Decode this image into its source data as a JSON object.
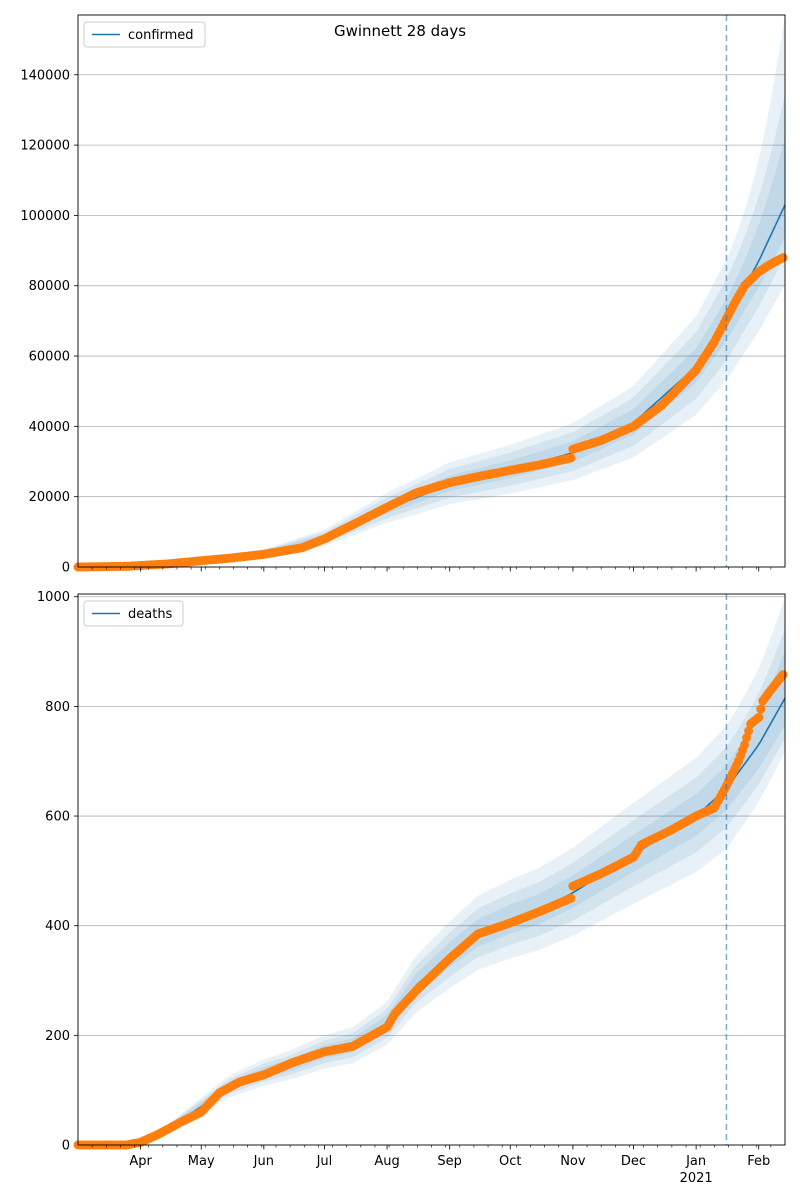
{
  "title": "Gwinnett 28 days",
  "colors": {
    "line": "#1f77b4",
    "observed": "#ff7f0e",
    "band": "#1f77b4",
    "grid": "#b0b0b0",
    "vline": "#1f77b4"
  },
  "chart_data": [
    {
      "type": "line",
      "legend": "top-left",
      "series_name": "confirmed",
      "ylim": [
        0,
        157000
      ],
      "yticks": [
        0,
        20000,
        40000,
        60000,
        80000,
        100000,
        120000,
        140000
      ],
      "ytick_labels": [
        "0",
        "20000",
        "40000",
        "60000",
        "80000",
        "100000",
        "120000",
        "140000"
      ],
      "grid": "y",
      "forecast_start": "2021-01-16",
      "model": [
        {
          "date": "2020-03-01",
          "y": 0
        },
        {
          "date": "2020-04-01",
          "y": 500
        },
        {
          "date": "2020-05-01",
          "y": 1800
        },
        {
          "date": "2020-06-01",
          "y": 3600
        },
        {
          "date": "2020-07-01",
          "y": 8000
        },
        {
          "date": "2020-08-01",
          "y": 16500
        },
        {
          "date": "2020-09-01",
          "y": 23500
        },
        {
          "date": "2020-10-01",
          "y": 27500
        },
        {
          "date": "2020-11-01",
          "y": 32500
        },
        {
          "date": "2020-12-01",
          "y": 41000
        },
        {
          "date": "2021-01-01",
          "y": 57000
        },
        {
          "date": "2021-01-16",
          "y": 70000
        },
        {
          "date": "2021-02-01",
          "y": 87000
        },
        {
          "date": "2021-02-14",
          "y": 103000
        }
      ],
      "band_fraction": [
        0.08,
        0.16,
        0.24
      ],
      "forecast_upper": [
        0.18,
        0.3,
        0.52
      ],
      "forecast_lower": [
        0.09,
        0.14,
        0.22
      ],
      "observed": [
        {
          "date": "2020-03-01",
          "y": 0
        },
        {
          "date": "2020-03-25",
          "y": 200
        },
        {
          "date": "2020-04-15",
          "y": 900
        },
        {
          "date": "2020-05-01",
          "y": 1800
        },
        {
          "date": "2020-05-15",
          "y": 2500
        },
        {
          "date": "2020-06-01",
          "y": 3600
        },
        {
          "date": "2020-06-20",
          "y": 5500
        },
        {
          "date": "2020-07-01",
          "y": 8000
        },
        {
          "date": "2020-07-15",
          "y": 12000
        },
        {
          "date": "2020-08-01",
          "y": 17000
        },
        {
          "date": "2020-08-15",
          "y": 21000
        },
        {
          "date": "2020-09-01",
          "y": 24000
        },
        {
          "date": "2020-09-15",
          "y": 25700
        },
        {
          "date": "2020-10-01",
          "y": 27500
        },
        {
          "date": "2020-10-15",
          "y": 29000
        },
        {
          "date": "2020-10-31",
          "y": 31000
        },
        {
          "date": "2020-11-01",
          "y": 33500
        },
        {
          "date": "2020-11-15",
          "y": 36000
        },
        {
          "date": "2020-12-01",
          "y": 40000
        },
        {
          "date": "2020-12-15",
          "y": 46000
        },
        {
          "date": "2021-01-01",
          "y": 56000
        },
        {
          "date": "2021-01-10",
          "y": 64000
        },
        {
          "date": "2021-01-20",
          "y": 75000
        },
        {
          "date": "2021-01-25",
          "y": 80000
        },
        {
          "date": "2021-02-01",
          "y": 84000
        },
        {
          "date": "2021-02-08",
          "y": 86500
        },
        {
          "date": "2021-02-13",
          "y": 88000
        }
      ]
    },
    {
      "type": "line",
      "legend": "top-left",
      "series_name": "deaths",
      "ylim": [
        0,
        1005
      ],
      "yticks": [
        0,
        200,
        400,
        600,
        800,
        1000
      ],
      "ytick_labels": [
        "0",
        "200",
        "400",
        "600",
        "800",
        "1000"
      ],
      "grid": "y",
      "forecast_start": "2021-01-16",
      "model": [
        {
          "date": "2020-03-01",
          "y": 0
        },
        {
          "date": "2020-03-25",
          "y": 1
        },
        {
          "date": "2020-04-01",
          "y": 5
        },
        {
          "date": "2020-04-15",
          "y": 30
        },
        {
          "date": "2020-05-01",
          "y": 70
        },
        {
          "date": "2020-05-15",
          "y": 105
        },
        {
          "date": "2020-06-01",
          "y": 130
        },
        {
          "date": "2020-06-15",
          "y": 145
        },
        {
          "date": "2020-07-01",
          "y": 168
        },
        {
          "date": "2020-07-15",
          "y": 180
        },
        {
          "date": "2020-08-01",
          "y": 220
        },
        {
          "date": "2020-08-15",
          "y": 290
        },
        {
          "date": "2020-09-01",
          "y": 345
        },
        {
          "date": "2020-09-15",
          "y": 385
        },
        {
          "date": "2020-10-01",
          "y": 410
        },
        {
          "date": "2020-10-15",
          "y": 428
        },
        {
          "date": "2020-11-01",
          "y": 460
        },
        {
          "date": "2020-12-01",
          "y": 530
        },
        {
          "date": "2021-01-01",
          "y": 600
        },
        {
          "date": "2021-01-16",
          "y": 650
        },
        {
          "date": "2021-02-01",
          "y": 730
        },
        {
          "date": "2021-02-14",
          "y": 815
        }
      ],
      "band_fraction": [
        0.06,
        0.11,
        0.17
      ],
      "forecast_upper": [
        0.1,
        0.15,
        0.22
      ],
      "forecast_lower": [
        0.06,
        0.09,
        0.12
      ],
      "observed": [
        {
          "date": "2020-03-01",
          "y": 0
        },
        {
          "date": "2020-03-25",
          "y": 0
        },
        {
          "date": "2020-04-01",
          "y": 5
        },
        {
          "date": "2020-04-10",
          "y": 20
        },
        {
          "date": "2020-04-20",
          "y": 40
        },
        {
          "date": "2020-05-01",
          "y": 60
        },
        {
          "date": "2020-05-10",
          "y": 95
        },
        {
          "date": "2020-05-20",
          "y": 115
        },
        {
          "date": "2020-06-01",
          "y": 128
        },
        {
          "date": "2020-06-15",
          "y": 150
        },
        {
          "date": "2020-07-01",
          "y": 170
        },
        {
          "date": "2020-07-15",
          "y": 180
        },
        {
          "date": "2020-08-01",
          "y": 215
        },
        {
          "date": "2020-08-05",
          "y": 240
        },
        {
          "date": "2020-08-15",
          "y": 280
        },
        {
          "date": "2020-09-01",
          "y": 340
        },
        {
          "date": "2020-09-15",
          "y": 385
        },
        {
          "date": "2020-10-01",
          "y": 405
        },
        {
          "date": "2020-10-15",
          "y": 425
        },
        {
          "date": "2020-10-31",
          "y": 450
        },
        {
          "date": "2020-11-01",
          "y": 472
        },
        {
          "date": "2020-11-15",
          "y": 495
        },
        {
          "date": "2020-12-01",
          "y": 525
        },
        {
          "date": "2020-12-05",
          "y": 548
        },
        {
          "date": "2020-12-20",
          "y": 575
        },
        {
          "date": "2021-01-01",
          "y": 600
        },
        {
          "date": "2021-01-10",
          "y": 615
        },
        {
          "date": "2021-01-16",
          "y": 655
        },
        {
          "date": "2021-01-22",
          "y": 700
        },
        {
          "date": "2021-01-25",
          "y": 730
        },
        {
          "date": "2021-01-28",
          "y": 768
        },
        {
          "date": "2021-02-01",
          "y": 780
        },
        {
          "date": "2021-02-03",
          "y": 810
        },
        {
          "date": "2021-02-07",
          "y": 830
        },
        {
          "date": "2021-02-13",
          "y": 858
        }
      ]
    }
  ],
  "x_axis": {
    "range": [
      "2020-03-01",
      "2021-02-14"
    ],
    "major_ticks": [
      {
        "date": "2020-04-01",
        "label": "Apr"
      },
      {
        "date": "2020-05-01",
        "label": "May"
      },
      {
        "date": "2020-06-01",
        "label": "Jun"
      },
      {
        "date": "2020-07-01",
        "label": "Jul"
      },
      {
        "date": "2020-08-01",
        "label": "Aug"
      },
      {
        "date": "2020-09-01",
        "label": "Sep"
      },
      {
        "date": "2020-10-01",
        "label": "Oct"
      },
      {
        "date": "2020-11-01",
        "label": "Nov"
      },
      {
        "date": "2020-12-01",
        "label": "Dec"
      },
      {
        "date": "2021-01-01",
        "label": "Jan"
      },
      {
        "date": "2021-02-01",
        "label": "Feb"
      }
    ],
    "year_label": {
      "date": "2021-01-01",
      "label": "2021"
    }
  }
}
